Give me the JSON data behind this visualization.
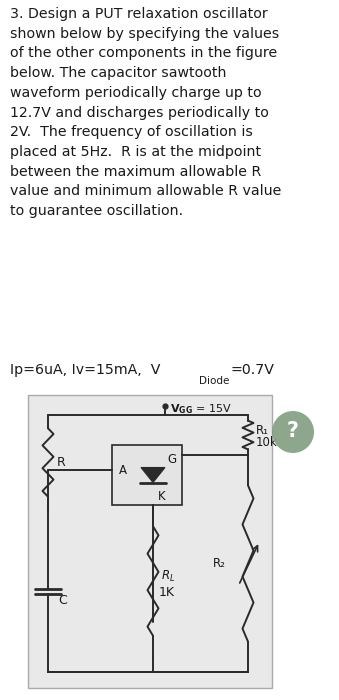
{
  "paragraph": "3. Design a PUT relaxation oscillator\nshown below by specifying the values\nof the other components in the figure\nbelow. The capacitor sawtooth\nwaveform periodically charge up to\n12.7V and discharges periodically to\n2V.  The frequency of oscillation is\nplaced at 5Hz.  R is at the midpoint\nbetween the maximum allowable R\nvalue and minimum allowable R value\nto guarantee oscillation.",
  "params_main": "Ip=6uA, Iv=15mA,  V",
  "params_sub": "Diode",
  "params_end": "=0.7V",
  "vcc_text": "V",
  "vcc_sub": "GG",
  "vcc_val": " = 15V",
  "r1_label": "R₁",
  "r1_val": "10k",
  "r2_label": "R₂",
  "rl_label": "Rₗ",
  "rl_val": "1K",
  "r_label": "R",
  "c_label": "C",
  "a_label": "A",
  "k_label": "K",
  "g_label": "G",
  "qmark": "?",
  "qmark_color": "#7d9b7d",
  "text_color": "#1a1a1a",
  "lc": "#2a2a2a",
  "circuit_bg": "#e9e9e9",
  "circuit_border": "#aaaaaa",
  "text_fontsize": 10.2,
  "sub_fontsize": 7.5,
  "lw": 1.4
}
